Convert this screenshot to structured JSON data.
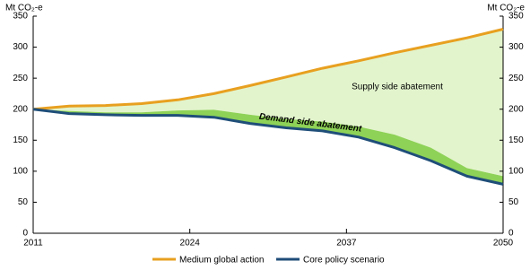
{
  "chart_data": {
    "type": "line",
    "x": [
      2011,
      2014,
      2017,
      2020,
      2023,
      2026,
      2029,
      2032,
      2035,
      2038,
      2041,
      2044,
      2047,
      2050
    ],
    "xlim": [
      2011,
      2050
    ],
    "xticks": [
      2011,
      2024,
      2037,
      2050
    ],
    "ylim": [
      0,
      350
    ],
    "yticks": [
      0,
      50,
      100,
      150,
      200,
      250,
      300,
      350
    ],
    "y2lim": [
      0,
      350
    ],
    "y2ticks": [
      0,
      50,
      100,
      150,
      200,
      250,
      300,
      350
    ],
    "ylabel": "Mt CO₂-e",
    "y2label": "Mt CO₂-e",
    "series": [
      {
        "name": "Medium global action",
        "color": "#e8a020",
        "values": [
          200,
          205,
          206,
          209,
          215,
          225,
          238,
          252,
          266,
          278,
          291,
          303,
          315,
          329
        ]
      },
      {
        "name": "Core policy scenario",
        "color": "#1f4e79",
        "values": [
          200,
          193,
          191,
          190,
          190,
          187,
          177,
          170,
          165,
          155,
          138,
          117,
          92,
          79
        ]
      }
    ],
    "areas": [
      {
        "label": "Supply side abatement",
        "color": "#e2f4cc"
      },
      {
        "label": "Demand side abatement",
        "color": "#8ed257",
        "upper": [
          200,
          197,
          195,
          195,
          198,
          199,
          191,
          184,
          180,
          172,
          159,
          138,
          105,
          92
        ]
      }
    ]
  }
}
